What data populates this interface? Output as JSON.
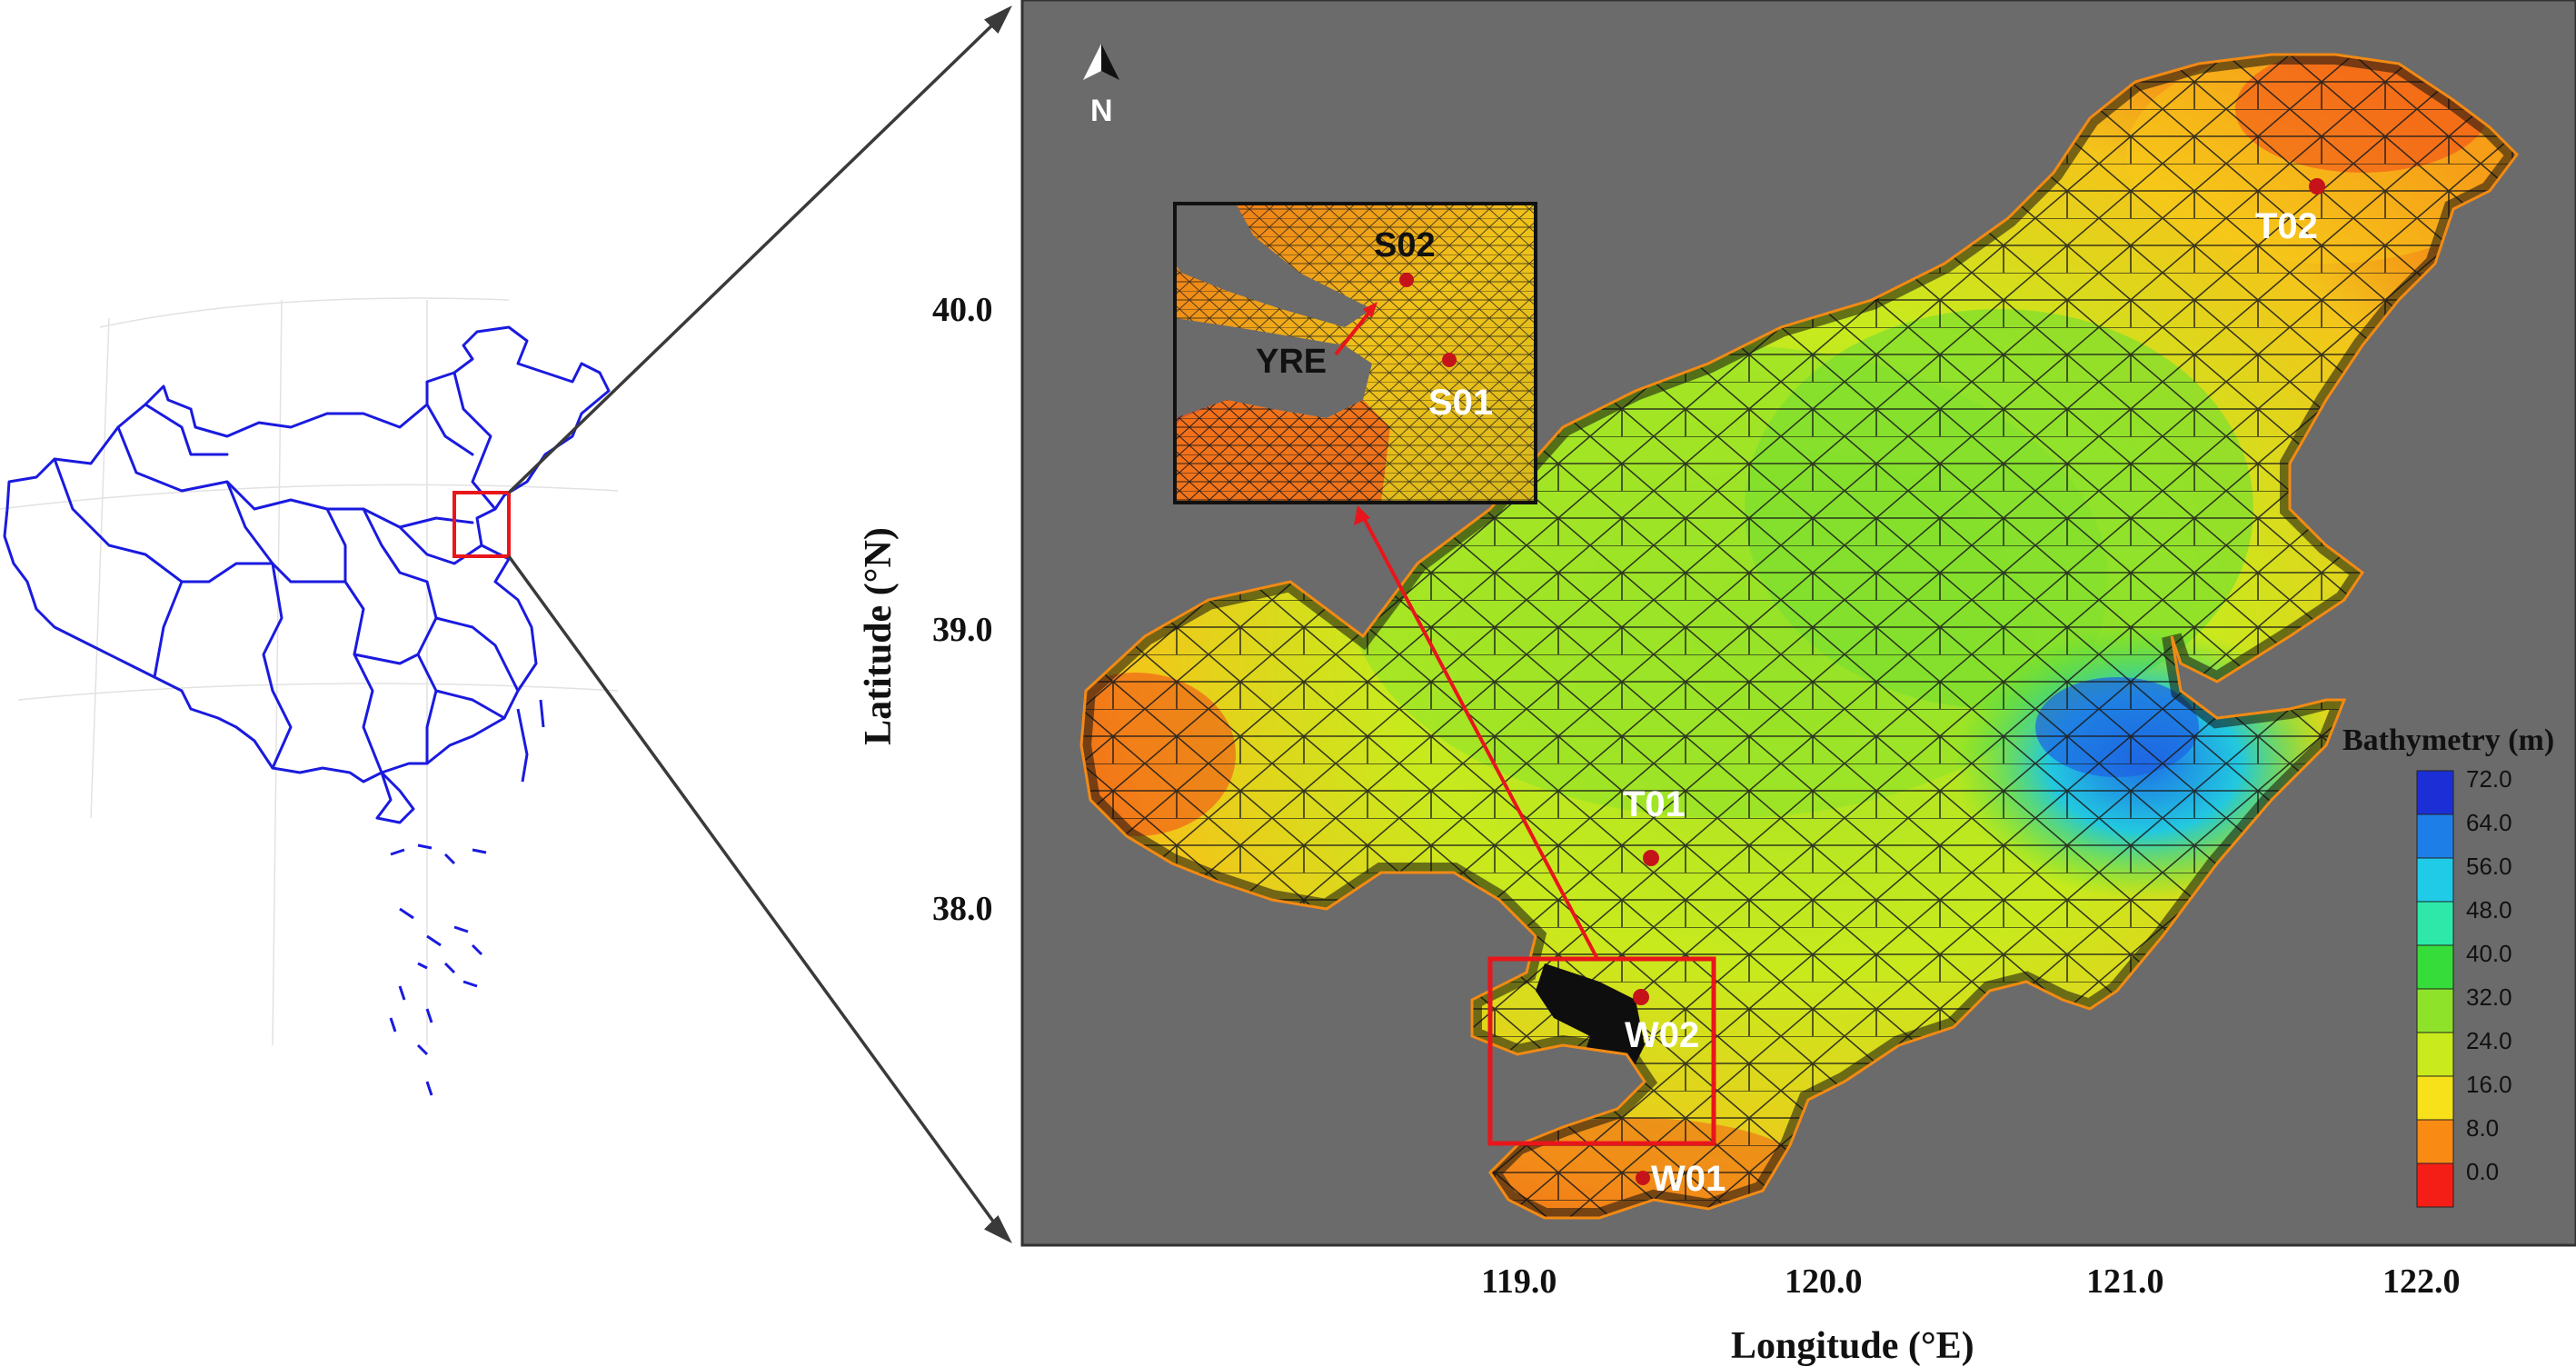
{
  "north_label": "N",
  "axes": {
    "x_label": "Longitude (°E)",
    "y_label": "Latitude (°N)",
    "x_ticks": [
      "119.0",
      "120.0",
      "121.0",
      "122.0"
    ],
    "y_ticks": [
      "40.0",
      "39.0",
      "38.0"
    ]
  },
  "stations": {
    "T01": "T01",
    "T02": "T02",
    "W01": "W01",
    "W02": "W02",
    "S01": "S01",
    "S02": "S02"
  },
  "inset": {
    "estuary_label": "YRE"
  },
  "legend": {
    "title": "Bathymetry (m)",
    "values": [
      "72.0",
      "64.0",
      "56.0",
      "48.0",
      "40.0",
      "32.0",
      "24.0",
      "16.0",
      "8.0",
      "0.0"
    ],
    "colors": [
      "#1c2fd6",
      "#1e7ee8",
      "#20cbe8",
      "#2de8a8",
      "#35dc3a",
      "#8fe22a",
      "#c9ea1c",
      "#f7e11a",
      "#f98a14",
      "#f41e16"
    ]
  },
  "colors": {
    "map_outline": "#1a1adf",
    "highlight_box": "#e8161b",
    "map_background": "#6b6b6b",
    "station_dot": "#c4141a"
  }
}
